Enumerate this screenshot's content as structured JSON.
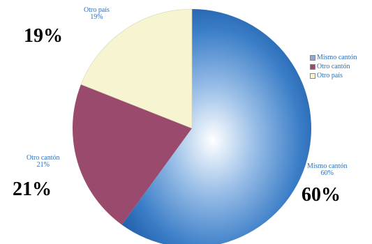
{
  "chart_data": {
    "type": "pie",
    "title": "",
    "slices": [
      {
        "label": "Mismo cantón",
        "value": 60,
        "percent_text": "60%",
        "color": "#2f6fb9"
      },
      {
        "label": "Otro cantón",
        "value": 21,
        "percent_text": "21%",
        "color": "#9a4a6d"
      },
      {
        "label": "Otro país",
        "value": 19,
        "percent_text": "19%",
        "color": "#f7f4d2"
      }
    ],
    "legend_position": "right"
  }
}
